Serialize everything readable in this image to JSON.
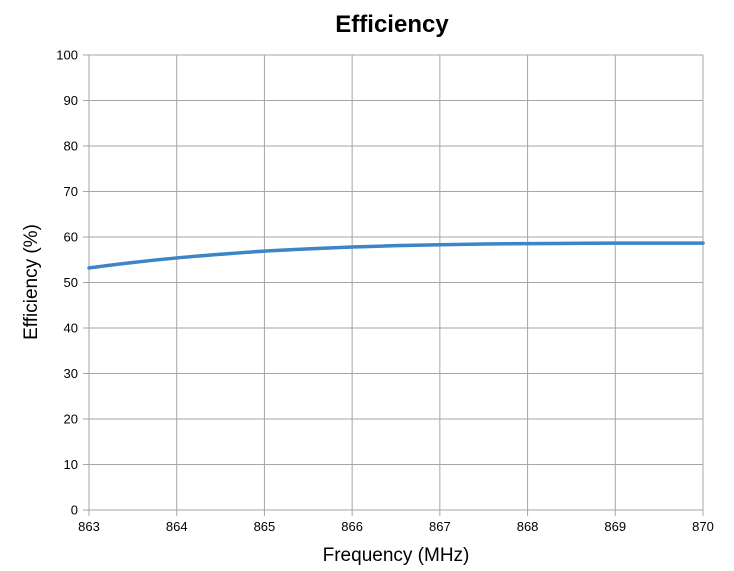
{
  "chart_data": {
    "type": "line",
    "title": "Efficiency",
    "xlabel": "Frequency (MHz)",
    "ylabel": "Efficiency (%)",
    "xlim": [
      863,
      870
    ],
    "ylim": [
      0,
      100
    ],
    "x_ticks": [
      863,
      864,
      865,
      866,
      867,
      868,
      869,
      870
    ],
    "y_ticks": [
      0,
      10,
      20,
      30,
      40,
      50,
      60,
      70,
      80,
      90,
      100
    ],
    "grid": true,
    "series": [
      {
        "color": "#3d85c6",
        "x": [
          863,
          863.5,
          864,
          864.5,
          865,
          865.5,
          866,
          866.5,
          867,
          867.5,
          868,
          868.5,
          869,
          869.5,
          870
        ],
        "y": [
          53.2,
          54.4,
          55.4,
          56.2,
          56.9,
          57.4,
          57.8,
          58.1,
          58.3,
          58.45,
          58.55,
          58.6,
          58.65,
          58.65,
          58.65
        ]
      }
    ]
  }
}
